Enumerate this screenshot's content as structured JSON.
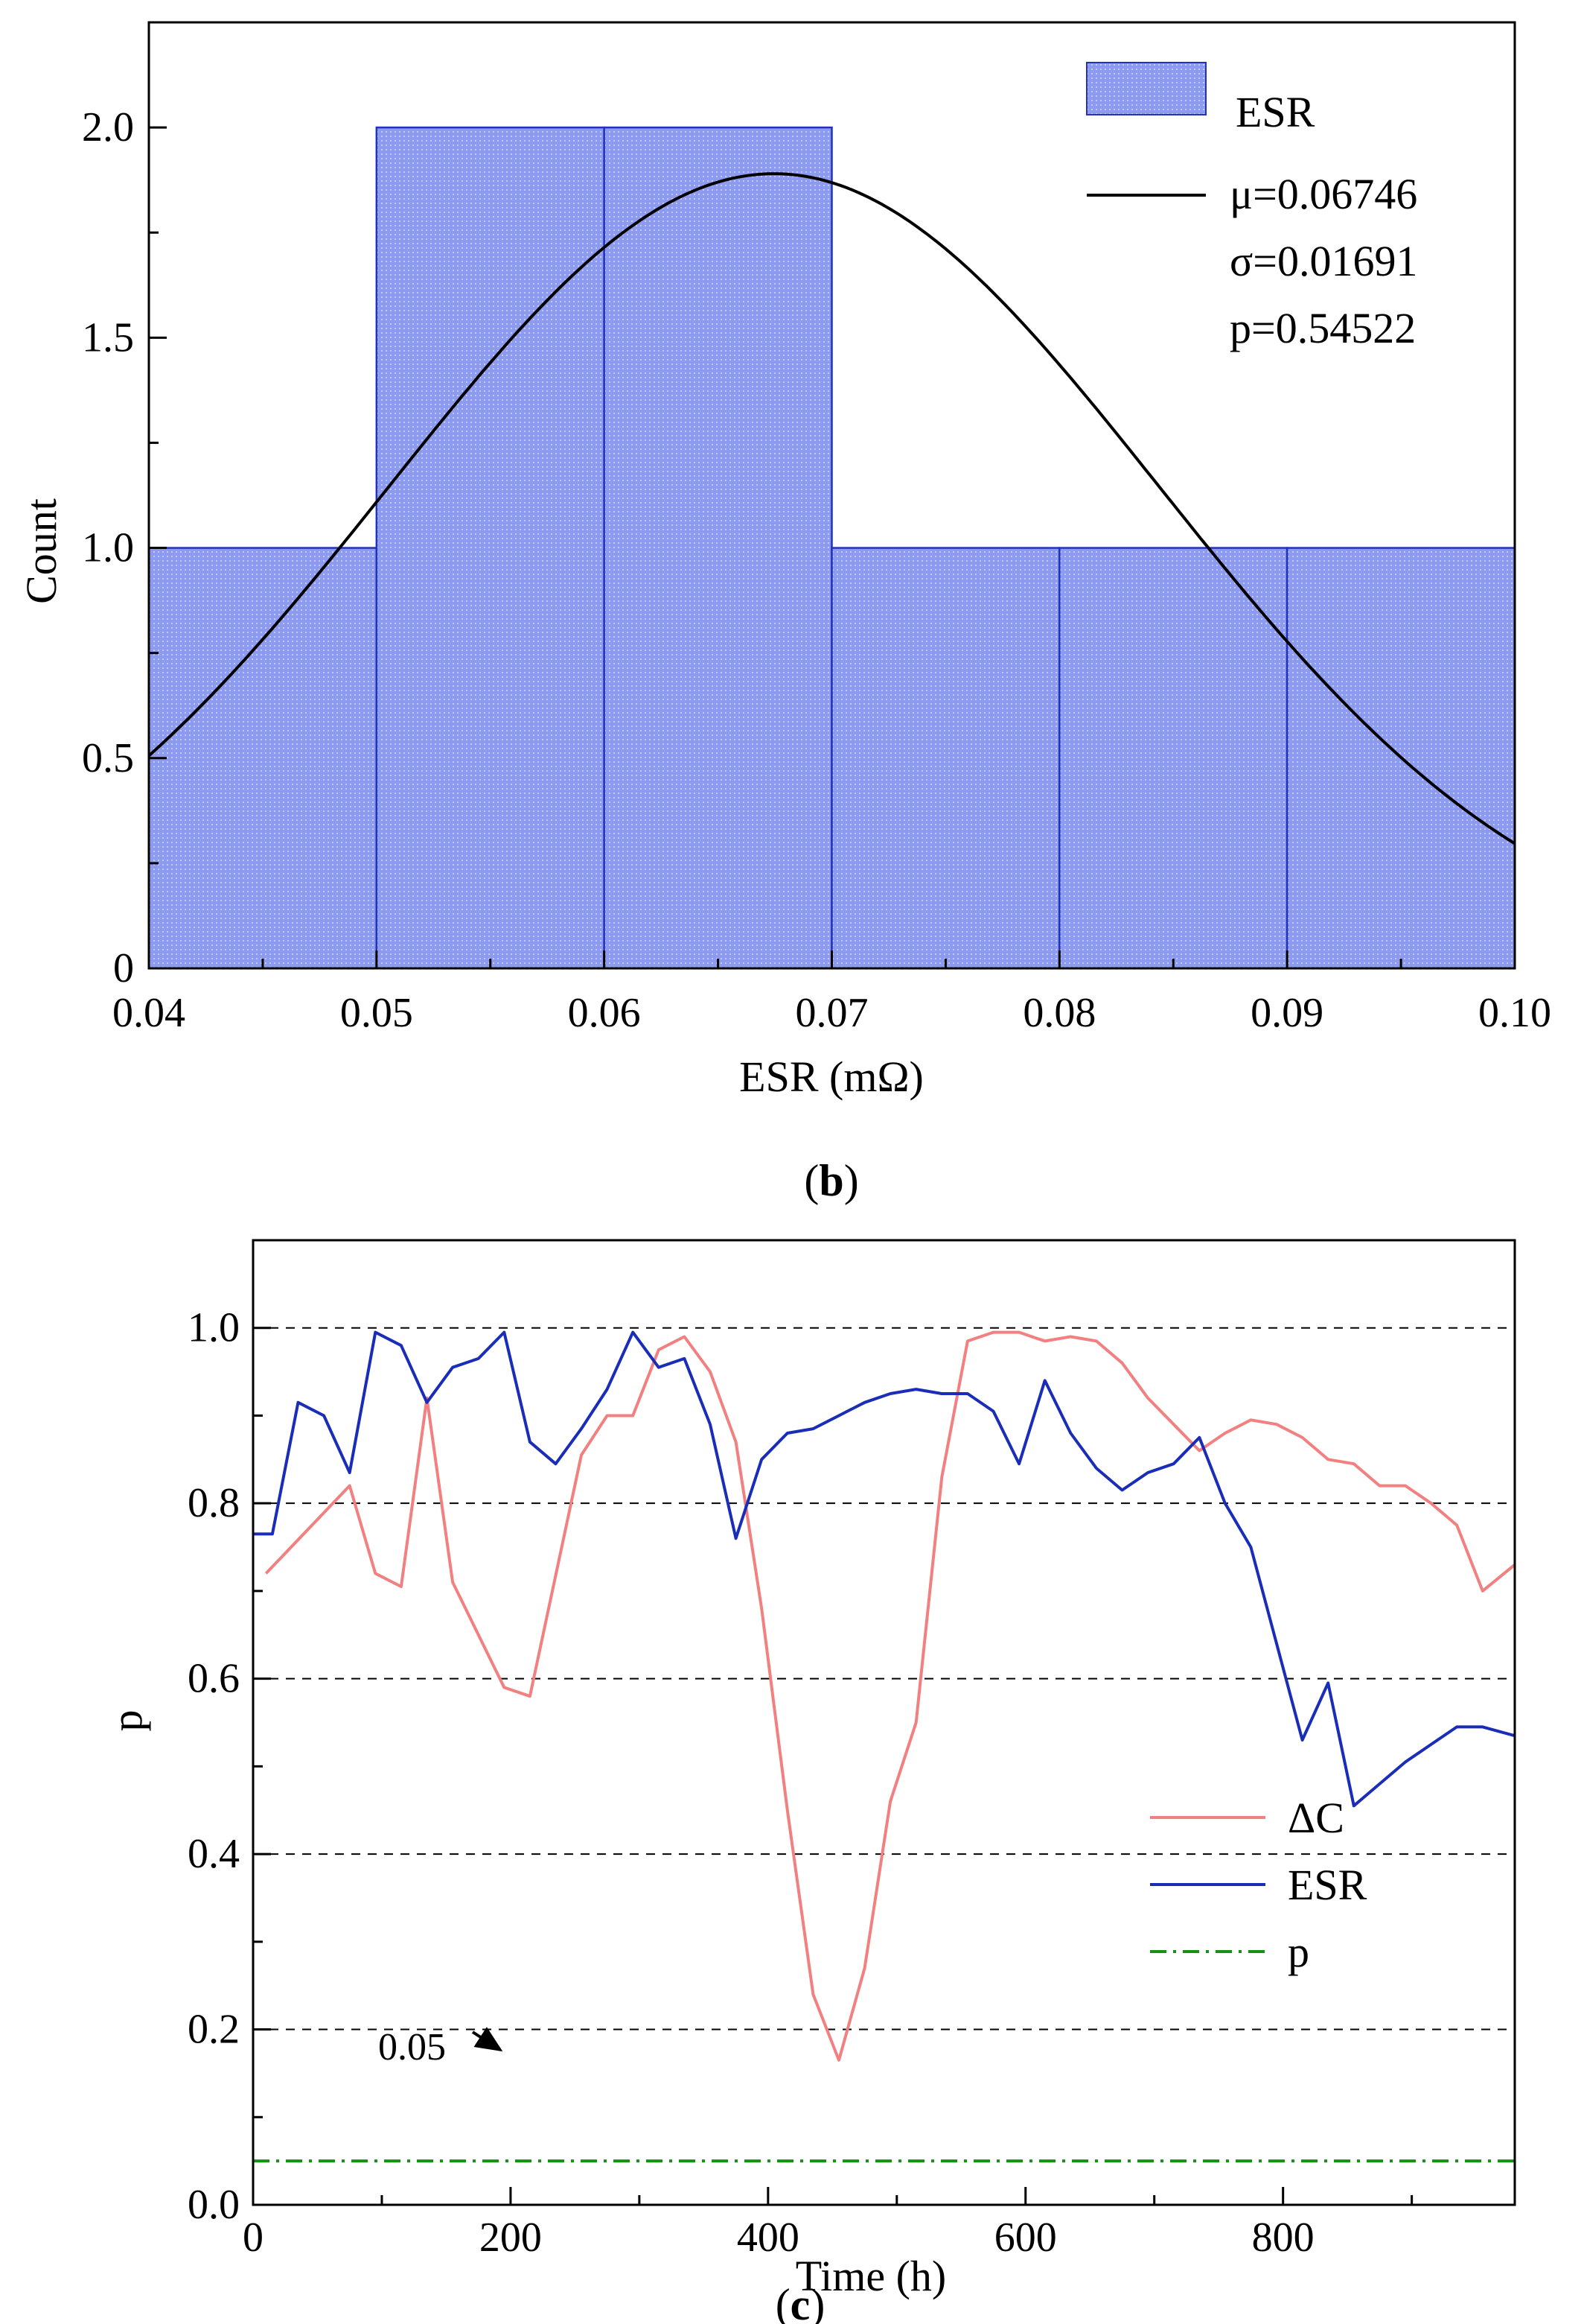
{
  "panel_b": {
    "label_open": "(",
    "label_letter": "b",
    "label_close": ")",
    "legend_hist": "ESR",
    "stats": [
      "μ=0.06746",
      "σ=0.01691",
      "p=0.54522"
    ]
  },
  "panel_c": {
    "label_open": "(",
    "label_letter": "c",
    "label_close": ")",
    "annotation": "0.05"
  },
  "colors": {
    "bar_fill": "#8c9bf0",
    "bar_edge": "#2233bb",
    "fit_line": "#000000",
    "delta_c": "#f28080",
    "esr": "#1a2db8",
    "threshold": "#169116",
    "grid": "#000000"
  },
  "chart_data": [
    {
      "type": "bar",
      "subtype": "histogram",
      "xlabel": "ESR (mΩ)",
      "ylabel": "Count",
      "xlim": [
        0.04,
        0.1
      ],
      "ylim": [
        0,
        2.25
      ],
      "xticks": [
        "0.04",
        "0.05",
        "0.06",
        "0.07",
        "0.08",
        "0.09",
        "0.10"
      ],
      "yticks": [
        "0",
        "0.5",
        "1.0",
        "1.5",
        "2.0"
      ],
      "bins": [
        {
          "x0": 0.04,
          "x1": 0.05,
          "count": 1
        },
        {
          "x0": 0.05,
          "x1": 0.06,
          "count": 2
        },
        {
          "x0": 0.06,
          "x1": 0.07,
          "count": 2
        },
        {
          "x0": 0.07,
          "x1": 0.08,
          "count": 1
        },
        {
          "x0": 0.08,
          "x1": 0.09,
          "count": 1
        },
        {
          "x0": 0.09,
          "x1": 0.1,
          "count": 1
        }
      ],
      "fit": {
        "type": "normal",
        "mu": 0.06746,
        "sigma": 0.01691,
        "peak": 1.89
      },
      "legend_placement": "top-right"
    },
    {
      "type": "line",
      "xlabel": "Time (h)",
      "ylabel": "p",
      "xlim": [
        0,
        980
      ],
      "ylim": [
        0,
        1.1
      ],
      "xticks": [
        "0",
        "200",
        "400",
        "600",
        "800"
      ],
      "yticks": [
        "0.0",
        "0.2",
        "0.4",
        "0.6",
        "0.8",
        "1.0"
      ],
      "grid_y": [
        0.2,
        0.4,
        0.6,
        0.8,
        1.0
      ],
      "legend_placement": "bottom-right",
      "series": [
        {
          "name": "ΔC",
          "x": [
            10,
            75,
            95,
            115,
            135,
            155,
            195,
            215,
            255,
            275,
            295,
            315,
            335,
            355,
            375,
            395,
            415,
            435,
            455,
            475,
            495,
            515,
            535,
            555,
            575,
            595,
            615,
            635,
            655,
            675,
            695,
            715,
            735,
            755,
            775,
            795,
            815,
            835,
            855,
            875,
            895,
            915,
            935,
            955,
            980
          ],
          "y": [
            0.72,
            0.82,
            0.72,
            0.705,
            0.92,
            0.71,
            0.59,
            0.58,
            0.855,
            0.9,
            0.9,
            0.975,
            0.99,
            0.95,
            0.87,
            0.68,
            0.45,
            0.24,
            0.165,
            0.27,
            0.46,
            0.55,
            0.83,
            0.985,
            0.995,
            0.995,
            0.985,
            0.99,
            0.985,
            0.96,
            0.92,
            0.89,
            0.86,
            0.88,
            0.895,
            0.89,
            0.875,
            0.85,
            0.845,
            0.82,
            0.82,
            0.8,
            0.775,
            0.7,
            0.73
          ]
        },
        {
          "name": "ESR",
          "x": [
            0,
            15,
            35,
            55,
            75,
            95,
            115,
            135,
            155,
            175,
            195,
            215,
            235,
            255,
            275,
            295,
            315,
            335,
            355,
            375,
            395,
            415,
            435,
            455,
            475,
            495,
            515,
            535,
            555,
            575,
            595,
            615,
            635,
            655,
            675,
            695,
            715,
            735,
            755,
            775,
            795,
            815,
            835,
            855,
            875,
            895,
            915,
            935,
            955,
            980
          ],
          "y": [
            0.765,
            0.765,
            0.915,
            0.9,
            0.835,
            0.995,
            0.98,
            0.915,
            0.955,
            0.965,
            0.995,
            0.87,
            0.845,
            0.885,
            0.93,
            0.995,
            0.955,
            0.965,
            0.89,
            0.76,
            0.85,
            0.88,
            0.885,
            0.9,
            0.915,
            0.925,
            0.93,
            0.925,
            0.925,
            0.905,
            0.845,
            0.94,
            0.88,
            0.84,
            0.815,
            0.835,
            0.845,
            0.875,
            0.8,
            0.75,
            0.64,
            0.53,
            0.595,
            0.455,
            0.48,
            0.505,
            0.525,
            0.545,
            0.545,
            0.535
          ]
        },
        {
          "name": "p",
          "x": [
            0,
            980
          ],
          "y": [
            0.05,
            0.05
          ],
          "style": "dash-dot"
        }
      ]
    }
  ]
}
